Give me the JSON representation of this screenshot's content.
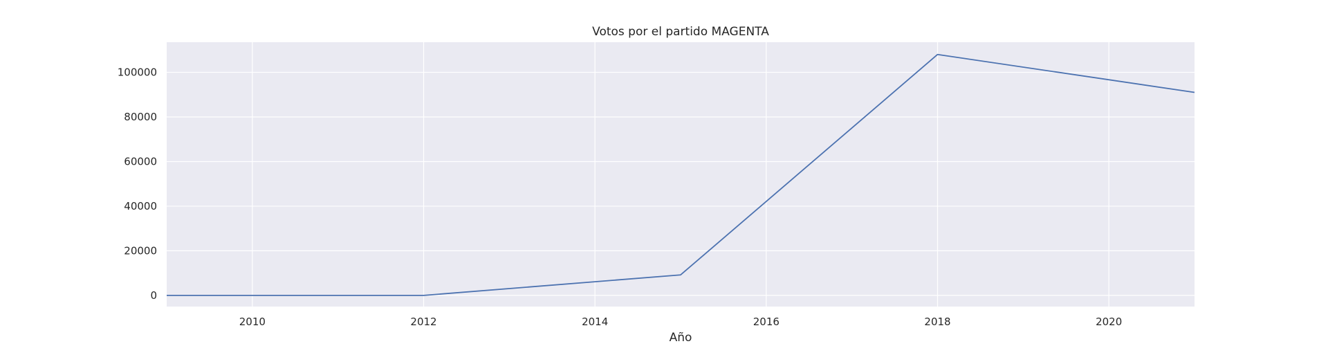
{
  "chart_data": {
    "type": "line",
    "title": "Votos por el partido MAGENTA",
    "xlabel": "Año",
    "ylabel": "",
    "x": [
      2009,
      2012,
      2015,
      2018,
      2021
    ],
    "series": [
      {
        "values": [
          0,
          0,
          9200,
          108000,
          91000
        ],
        "color": "#4c72b0"
      }
    ],
    "xlim": [
      2009,
      2021
    ],
    "ylim": [
      -5000,
      113500
    ],
    "xticks": [
      2010,
      2012,
      2014,
      2016,
      2018,
      2020
    ],
    "yticks": [
      0,
      20000,
      40000,
      60000,
      80000,
      100000
    ],
    "grid": true,
    "legend": "none",
    "plot_background": "#eaeaf2"
  }
}
